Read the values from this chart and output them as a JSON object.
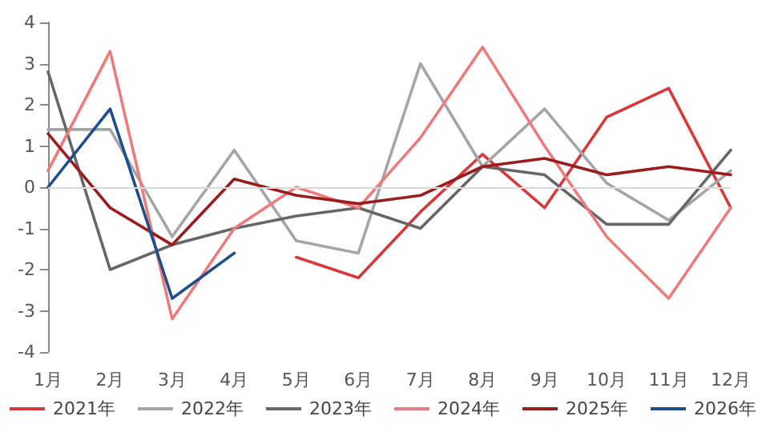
{
  "chart_data": {
    "type": "line",
    "categories": [
      "1月",
      "2月",
      "3月",
      "4月",
      "5月",
      "6月",
      "7月",
      "8月",
      "9月",
      "10月",
      "11月",
      "12月"
    ],
    "ylim": [
      -4,
      4
    ],
    "yticks": [
      -4,
      -3,
      -2,
      -1,
      0,
      1,
      2,
      3,
      4
    ],
    "grid": false,
    "ref_lines": [
      {
        "axis": "y",
        "value": 0,
        "color": "#d9d9d9"
      }
    ],
    "legend": "bottom",
    "marker": "none",
    "series": [
      {
        "name": "2021年",
        "color": "#d9383a",
        "values": [
          null,
          null,
          null,
          null,
          -1.7,
          -2.2,
          -0.6,
          0.8,
          -0.5,
          1.7,
          2.4,
          -0.5
        ]
      },
      {
        "name": "2022年",
        "color": "#a5a5a5",
        "values": [
          1.4,
          1.4,
          -1.2,
          0.9,
          -1.3,
          -1.6,
          3.0,
          0.5,
          1.9,
          0.1,
          -0.8,
          0.4
        ]
      },
      {
        "name": "2023年",
        "color": "#666666",
        "values": [
          2.8,
          -2.0,
          -1.4,
          -1.0,
          -0.7,
          -0.5,
          -1.0,
          0.5,
          0.3,
          -0.9,
          -0.9,
          0.9
        ]
      },
      {
        "name": "2024年",
        "color": "#ee7b7b",
        "values": [
          0.4,
          3.3,
          -3.2,
          -1.0,
          0.0,
          -0.5,
          1.2,
          3.4,
          1.0,
          -1.2,
          -2.7,
          -0.5
        ]
      },
      {
        "name": "2025年",
        "color": "#9b1c1c",
        "values": [
          1.3,
          -0.5,
          -1.4,
          0.2,
          -0.2,
          -0.4,
          -0.2,
          0.5,
          0.7,
          0.3,
          0.5,
          0.3
        ]
      },
      {
        "name": "2026年",
        "color": "#1f4e8c",
        "values": [
          0.0,
          1.9,
          -2.7,
          -1.6,
          null,
          null,
          null,
          null,
          null,
          null,
          null,
          null
        ]
      }
    ]
  }
}
